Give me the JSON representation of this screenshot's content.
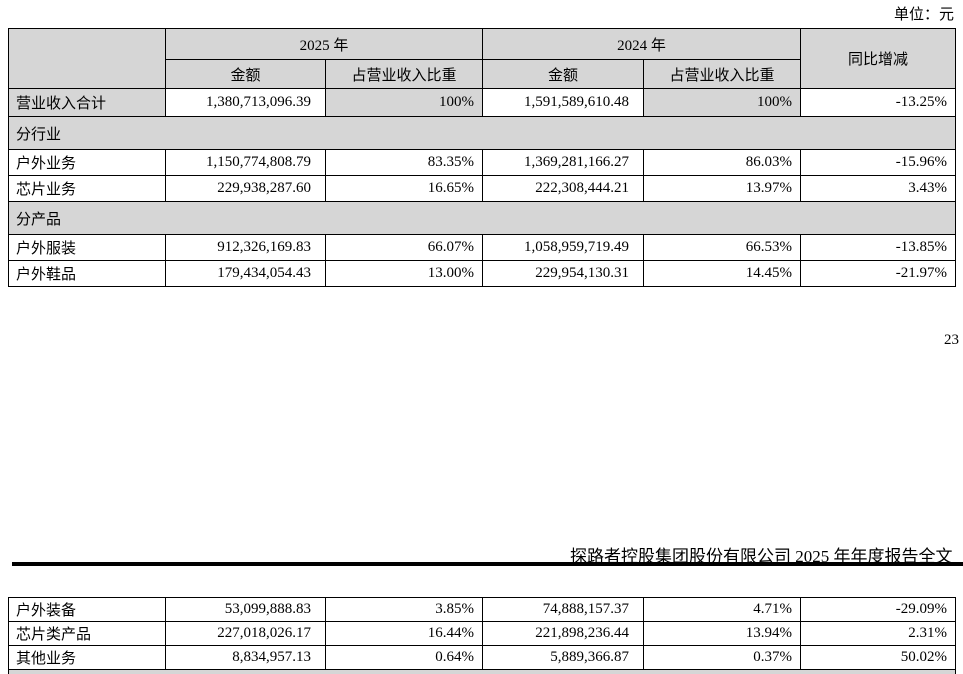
{
  "page": {
    "unit_label": "单位：元",
    "page_number": "23",
    "report_header": "探路者控股集团股份有限公司 2025 年年度报告全文"
  },
  "table1": {
    "headers": {
      "year_2025": "2025 年",
      "year_2024": "2024 年",
      "yoy": "同比增减",
      "amount": "金额",
      "share": "占营业收入比重"
    },
    "rows": [
      {
        "type": "data",
        "shaded": true,
        "label": "营业收入合计",
        "a2025": "1,380,713,096.39",
        "p2025": "100%",
        "a2024": "1,591,589,610.48",
        "p2024": "100%",
        "yoy": "-13.25%"
      },
      {
        "type": "section",
        "label": "分行业"
      },
      {
        "type": "data",
        "label": "户外业务",
        "a2025": "1,150,774,808.79",
        "p2025": "83.35%",
        "a2024": "1,369,281,166.27",
        "p2024": "86.03%",
        "yoy": "-15.96%"
      },
      {
        "type": "data",
        "label": "芯片业务",
        "a2025": "229,938,287.60",
        "p2025": "16.65%",
        "a2024": "222,308,444.21",
        "p2024": "13.97%",
        "yoy": "3.43%"
      },
      {
        "type": "section",
        "label": "分产品"
      },
      {
        "type": "data",
        "label": "户外服装",
        "a2025": "912,326,169.83",
        "p2025": "66.07%",
        "a2024": "1,058,959,719.49",
        "p2024": "66.53%",
        "yoy": "-13.85%"
      },
      {
        "type": "data",
        "label": "户外鞋品",
        "a2025": "179,434,054.43",
        "p2025": "13.00%",
        "a2024": "229,954,130.31",
        "p2024": "14.45%",
        "yoy": "-21.97%"
      }
    ]
  },
  "table2": {
    "rows": [
      {
        "type": "data",
        "label": "户外装备",
        "a2025": "53,099,888.83",
        "p2025": "3.85%",
        "a2024": "74,888,157.37",
        "p2024": "4.71%",
        "yoy": "-29.09%"
      },
      {
        "type": "data",
        "label": "芯片类产品",
        "a2025": "227,018,026.17",
        "p2025": "16.44%",
        "a2024": "221,898,236.44",
        "p2024": "13.94%",
        "yoy": "2.31%"
      },
      {
        "type": "data",
        "label": "其他业务",
        "a2025": "8,834,957.13",
        "p2025": "0.64%",
        "a2024": "5,889,366.87",
        "p2024": "0.37%",
        "yoy": "50.02%"
      }
    ]
  }
}
